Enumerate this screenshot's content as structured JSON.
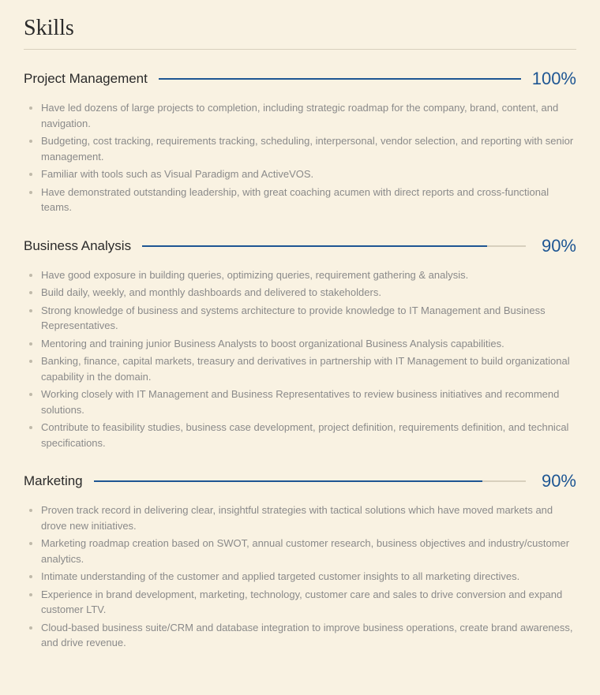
{
  "section_title": "Skills",
  "colors": {
    "background": "#f9f2e2",
    "heading_text": "#2a2a2a",
    "divider": "#d8d0bd",
    "bar_track": "#d8d0bd",
    "bar_fill": "#1e5693",
    "percent_text": "#1e5693",
    "bullet_text": "#8a8a8a",
    "bullet_marker": "#c0baaa"
  },
  "typography": {
    "section_title_fontsize": 28,
    "skill_name_fontsize": 17,
    "percent_fontsize": 22,
    "bullet_fontsize": 13,
    "section_title_font": "Georgia, serif",
    "body_font": "-apple-system, Segoe UI, Helvetica, Arial, sans-serif"
  },
  "skills": [
    {
      "name": "Project Management",
      "percent_label": "100%",
      "percent_value": 100,
      "bullets": [
        "Have led dozens of large projects to completion, including strategic roadmap for the company, brand, content, and navigation.",
        "Budgeting, cost tracking, requirements tracking, scheduling, interpersonal, vendor selection, and reporting with senior management.",
        "Familiar with tools such as Visual Paradigm and ActiveVOS.",
        "Have demonstrated outstanding leadership, with great coaching acumen with direct reports and cross-functional teams."
      ]
    },
    {
      "name": "Business Analysis",
      "percent_label": "90%",
      "percent_value": 90,
      "bullets": [
        "Have good exposure in building queries, optimizing queries, requirement gathering & analysis.",
        "Build daily, weekly, and monthly dashboards and delivered to stakeholders.",
        "Strong knowledge of business and systems architecture to provide knowledge to IT Management and Business Representatives.",
        "Mentoring and training junior Business Analysts to boost organizational Business Analysis capabilities.",
        "Banking, finance, capital markets, treasury and derivatives in partnership with IT Management to build organizational capability in the domain.",
        "Working closely with IT Management and Business Representatives to review business initiatives and recommend solutions.",
        "Contribute to feasibility studies, business case development, project definition, requirements definition, and technical specifications."
      ]
    },
    {
      "name": "Marketing",
      "percent_label": "90%",
      "percent_value": 90,
      "bullets": [
        "Proven track record in delivering clear, insightful strategies with tactical solutions which have moved markets and drove new initiatives.",
        "Marketing roadmap creation based on SWOT, annual customer research, business objectives and industry/customer analytics.",
        "Intimate understanding of the customer and applied targeted customer insights to all marketing directives.",
        "Experience in brand development, marketing, technology, customer care and sales to drive conversion and expand customer LTV.",
        "Cloud-based business suite/CRM and database integration to improve business operations, create brand awareness, and drive revenue."
      ]
    }
  ]
}
